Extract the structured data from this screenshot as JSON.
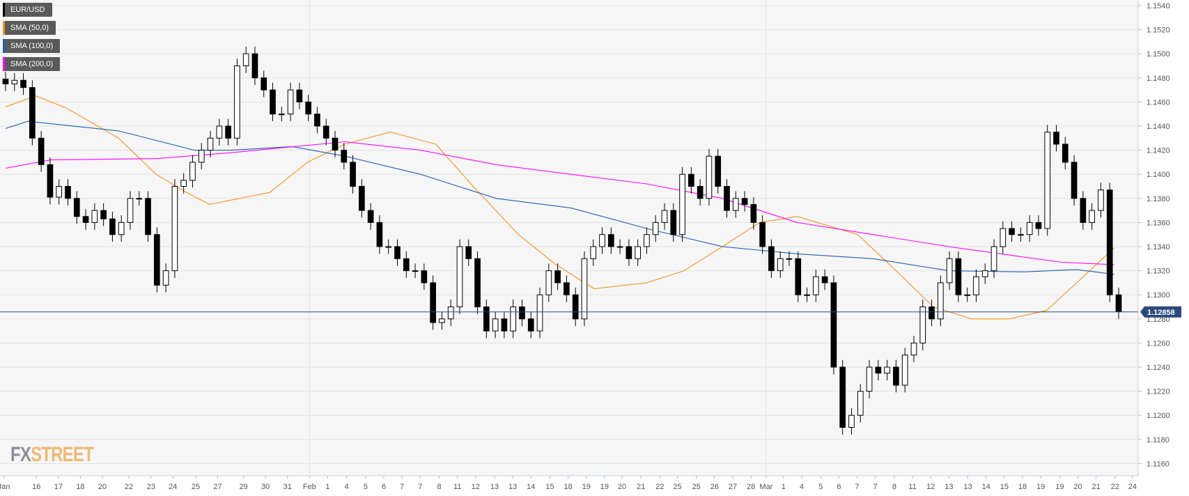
{
  "legend": [
    {
      "label": "EUR/USD",
      "color": "#000000"
    },
    {
      "label": "SMA (50,0)",
      "color": "#f7931e"
    },
    {
      "label": "SMA (100,0)",
      "color": "#1e5fb4"
    },
    {
      "label": "SMA (200,0)",
      "color": "#ff00ff"
    }
  ],
  "logo": {
    "part1": "FX",
    "part2": "STREET"
  },
  "chart_data": {
    "type": "candlestick",
    "ylim": [
      1.1147,
      1.1545
    ],
    "yticks": [
      "1.1540",
      "1.1520",
      "1.1500",
      "1.1480",
      "1.1460",
      "1.1440",
      "1.1420",
      "1.1400",
      "1.1380",
      "1.1360",
      "1.1340",
      "1.1320",
      "1.1300",
      "1.1280",
      "1.1260",
      "1.1240",
      "1.1220",
      "1.1200",
      "1.1180",
      "1.1160"
    ],
    "xticks": [
      "Jan",
      "16",
      "17",
      "18",
      "20",
      "22",
      "23",
      "24",
      "25",
      "27",
      "29",
      "30",
      "31",
      "Feb",
      "1",
      "4",
      "5",
      "6",
      "7",
      "7",
      "8",
      "11",
      "12",
      "13",
      "13",
      "14",
      "15",
      "18",
      "19",
      "19",
      "20",
      "21",
      "22",
      "25",
      "25",
      "26",
      "27",
      "28",
      "Mar",
      "1",
      "4",
      "5",
      "6",
      "7",
      "7",
      "8",
      "11",
      "12",
      "13",
      "13",
      "14",
      "15",
      "18",
      "19",
      "19",
      "20",
      "21",
      "22",
      "24"
    ],
    "current_price": "1.12858",
    "closes": [
      1.1475,
      1.1478,
      1.1472,
      1.143,
      1.1408,
      1.1381,
      1.139,
      1.138,
      1.1365,
      1.136,
      1.137,
      1.1363,
      1.135,
      1.136,
      1.138,
      1.138,
      1.135,
      1.1308,
      1.132,
      1.139,
      1.1395,
      1.141,
      1.142,
      1.143,
      1.144,
      1.143,
      1.149,
      1.15,
      1.148,
      1.147,
      1.145,
      1.145,
      1.147,
      1.146,
      1.145,
      1.144,
      1.143,
      1.142,
      1.141,
      1.139,
      1.137,
      1.136,
      1.134,
      1.134,
      1.133,
      1.132,
      1.132,
      1.131,
      1.1277,
      1.128,
      1.129,
      1.134,
      1.133,
      1.129,
      1.127,
      1.128,
      1.127,
      1.129,
      1.128,
      1.127,
      1.13,
      1.132,
      1.131,
      1.13,
      1.128,
      1.133,
      1.134,
      1.135,
      1.134,
      1.134,
      1.133,
      1.134,
      1.135,
      1.136,
      1.137,
      1.135,
      1.14,
      1.139,
      1.138,
      1.1415,
      1.139,
      1.137,
      1.138,
      1.1375,
      1.136,
      1.134,
      1.132,
      1.133,
      1.133,
      1.13,
      1.13,
      1.1315,
      1.131,
      1.124,
      1.119,
      1.12,
      1.122,
      1.124,
      1.1235,
      1.124,
      1.1225,
      1.125,
      1.126,
      1.129,
      1.128,
      1.131,
      1.133,
      1.13,
      1.13,
      1.1315,
      1.132,
      1.134,
      1.1355,
      1.135,
      1.135,
      1.136,
      1.1355,
      1.1435,
      1.1425,
      1.141,
      1.138,
      1.136,
      1.137,
      1.1387,
      1.13,
      1.1286
    ],
    "series": [
      {
        "name": "SMA (50,0)",
        "color": "#f7931e",
        "points": [
          [
            0,
            1.1456
          ],
          [
            3.4,
            1.1465
          ],
          [
            6.8,
            1.1455
          ],
          [
            12.7,
            1.143
          ],
          [
            16.9,
            1.14
          ],
          [
            20.3,
            1.1385
          ],
          [
            22.9,
            1.1375
          ],
          [
            29.7,
            1.1385
          ],
          [
            33.9,
            1.141
          ],
          [
            38.1,
            1.1425
          ],
          [
            43.2,
            1.1435
          ],
          [
            48.3,
            1.1425
          ],
          [
            52.5,
            1.139
          ],
          [
            57.6,
            1.135
          ],
          [
            61.8,
            1.1325
          ],
          [
            66.1,
            1.1305
          ],
          [
            72,
            1.131
          ],
          [
            76.2,
            1.132
          ],
          [
            80.5,
            1.134
          ],
          [
            84.7,
            1.136
          ],
          [
            88.9,
            1.1365
          ],
          [
            95.7,
            1.135
          ],
          [
            100,
            1.132
          ],
          [
            104.2,
            1.129
          ],
          [
            108.5,
            1.128
          ],
          [
            112.7,
            1.128
          ],
          [
            116.9,
            1.1287
          ],
          [
            120.3,
            1.131
          ],
          [
            124.5,
            1.1339
          ]
        ]
      },
      {
        "name": "SMA (100,0)",
        "color": "#1e5fb4",
        "points": [
          [
            0,
            1.1438
          ],
          [
            2.5,
            1.1444
          ],
          [
            12.7,
            1.1436
          ],
          [
            21.2,
            1.142
          ],
          [
            25.4,
            1.142
          ],
          [
            32.2,
            1.1423
          ],
          [
            38.1,
            1.1415
          ],
          [
            46.6,
            1.14
          ],
          [
            55.1,
            1.138
          ],
          [
            63.5,
            1.1372
          ],
          [
            72,
            1.1355
          ],
          [
            80.5,
            1.134
          ],
          [
            88.9,
            1.1334
          ],
          [
            97.4,
            1.133
          ],
          [
            105.9,
            1.132
          ],
          [
            114.4,
            1.1319
          ],
          [
            120.3,
            1.1321
          ],
          [
            124.5,
            1.1317
          ]
        ]
      },
      {
        "name": "SMA (200,0)",
        "color": "#ff00ff",
        "points": [
          [
            0,
            1.1405
          ],
          [
            5.1,
            1.1412
          ],
          [
            16.9,
            1.1413
          ],
          [
            25.4,
            1.1418
          ],
          [
            38.1,
            1.1427
          ],
          [
            46.6,
            1.142
          ],
          [
            55.1,
            1.1408
          ],
          [
            63.5,
            1.14
          ],
          [
            72,
            1.1392
          ],
          [
            80.5,
            1.138
          ],
          [
            88.9,
            1.136
          ],
          [
            97.4,
            1.135
          ],
          [
            105.9,
            1.134
          ],
          [
            112.7,
            1.1333
          ],
          [
            118.6,
            1.1327
          ],
          [
            124.5,
            1.1325
          ]
        ]
      }
    ]
  }
}
